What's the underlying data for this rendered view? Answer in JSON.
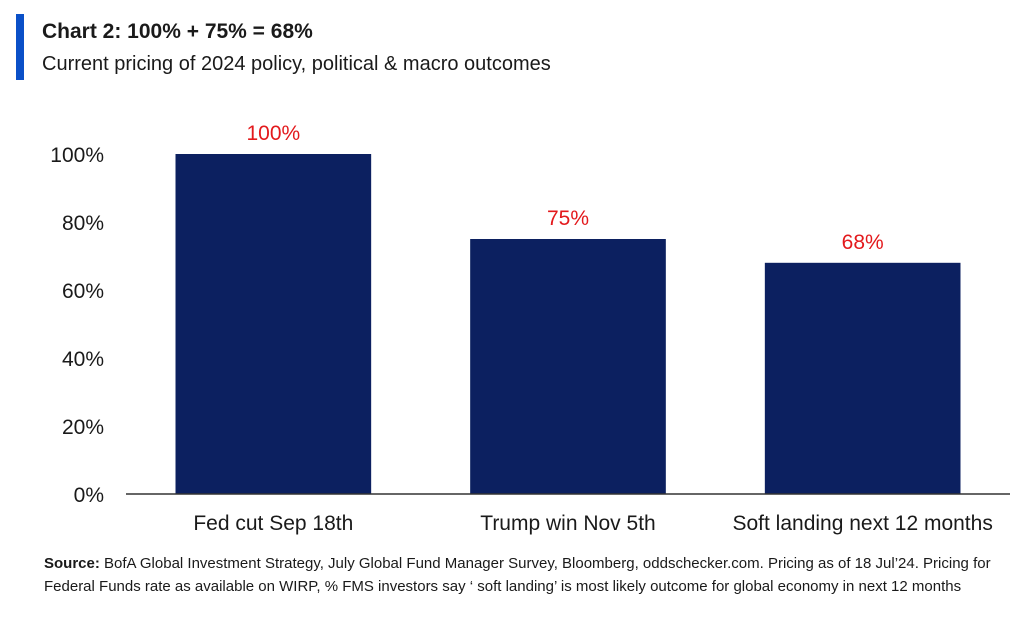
{
  "header": {
    "title": "Chart 2: 100% + 75% = 68%",
    "subtitle": "Current pricing of 2024 policy, political & macro outcomes",
    "accent_color": "#0a50c8"
  },
  "chart_data": {
    "type": "bar",
    "categories": [
      "Fed cut Sep 18th",
      "Trump win Nov 5th",
      "Soft landing next 12 months"
    ],
    "values": [
      100,
      75,
      68
    ],
    "data_labels": [
      "100%",
      "75%",
      "68%"
    ],
    "y_ticks": [
      "0%",
      "20%",
      "40%",
      "60%",
      "80%",
      "100%"
    ],
    "ylim": [
      0,
      100
    ],
    "grid": false,
    "bar_color": "#0c2060",
    "label_color": "#e3191c"
  },
  "footer": {
    "source_label": "Source:",
    "source_text": "BofA Global Investment Strategy, July Global Fund Manager Survey, Bloomberg, oddschecker.com. Pricing as of 18 Jul’24. Pricing for Federal Funds rate as available on WIRP, % FMS investors say ‘ soft landing’ is most likely outcome for global economy in next 12 months"
  }
}
